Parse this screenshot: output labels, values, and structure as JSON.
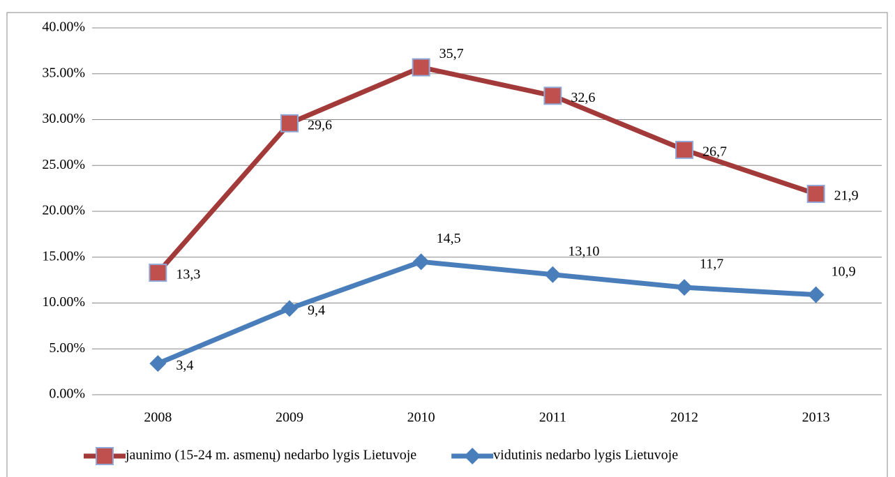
{
  "chart_data": {
    "type": "line",
    "categories": [
      "2008",
      "2009",
      "2010",
      "2011",
      "2012",
      "2013"
    ],
    "series": [
      {
        "name": "jaunimo (15-24 m. asmenų) nedarbo lygis Lietuvoje",
        "color": "#a33a3a",
        "marker": "square",
        "values": [
          13.3,
          29.6,
          35.7,
          32.6,
          26.7,
          21.9
        ],
        "value_labels": [
          "13,3",
          "29,6",
          "35,7",
          "32,6",
          "26,7",
          "21,9"
        ]
      },
      {
        "name": "vidutinis nedarbo lygis Lietuvoje",
        "color": "#4a7ebb",
        "marker": "diamond",
        "values": [
          3.4,
          9.4,
          14.5,
          13.1,
          11.7,
          10.9
        ],
        "value_labels": [
          "3,4",
          "9,4",
          "14,5",
          "13,10",
          "11,7",
          "10,9"
        ]
      }
    ],
    "ylim": [
      0,
      40
    ],
    "yticks": [
      {
        "value": 0,
        "label": "0.00%"
      },
      {
        "value": 5,
        "label": "5.00%"
      },
      {
        "value": 10,
        "label": "10.00%"
      },
      {
        "value": 15,
        "label": "15.00%"
      },
      {
        "value": 20,
        "label": "20.00%"
      },
      {
        "value": 25,
        "label": "25.00%"
      },
      {
        "value": 30,
        "label": "30.00%"
      },
      {
        "value": 35,
        "label": "35.00%"
      },
      {
        "value": 40,
        "label": "40.00%"
      }
    ],
    "grid": true,
    "legend": "bottom"
  }
}
